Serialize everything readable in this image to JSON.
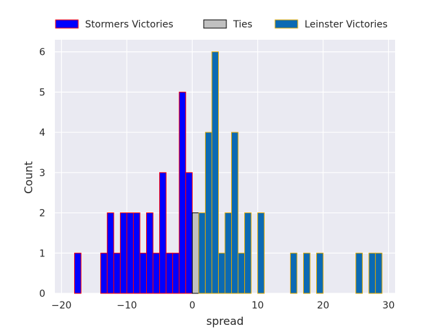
{
  "chart_data": {
    "type": "bar",
    "title": "",
    "xlabel": "spread",
    "ylabel": "Count",
    "xlim": [
      -21,
      31
    ],
    "ylim": [
      0,
      6.3
    ],
    "xticks": [
      -20,
      -10,
      0,
      10,
      20,
      30
    ],
    "xtick_labels": [
      "−20",
      "−10",
      "0",
      "10",
      "20",
      "30"
    ],
    "yticks": [
      0,
      1,
      2,
      3,
      4,
      5,
      6
    ],
    "ytick_labels": [
      "0",
      "1",
      "2",
      "3",
      "4",
      "5",
      "6"
    ],
    "grid": true,
    "legend_position": "top-center, outside plot",
    "bin_width": 1,
    "series": [
      {
        "name": "Stormers Victories",
        "fill": "#0000ff",
        "edge": "#ff0000",
        "bins": [
          {
            "x": -18,
            "count": 1
          },
          {
            "x": -14,
            "count": 1
          },
          {
            "x": -13,
            "count": 2
          },
          {
            "x": -12,
            "count": 1
          },
          {
            "x": -11,
            "count": 2
          },
          {
            "x": -10,
            "count": 2
          },
          {
            "x": -9,
            "count": 2
          },
          {
            "x": -8,
            "count": 1
          },
          {
            "x": -7,
            "count": 2
          },
          {
            "x": -6,
            "count": 1
          },
          {
            "x": -5,
            "count": 3
          },
          {
            "x": -4,
            "count": 1
          },
          {
            "x": -3,
            "count": 1
          },
          {
            "x": -2,
            "count": 5
          },
          {
            "x": -1,
            "count": 3
          }
        ]
      },
      {
        "name": "Ties",
        "fill": "#c0c0c0",
        "edge": "#000000",
        "bins": [
          {
            "x": 0,
            "count": 2
          }
        ]
      },
      {
        "name": "Leinster Victories",
        "fill": "#0b6ab3",
        "edge": "#e0a800",
        "bins": [
          {
            "x": 1,
            "count": 2
          },
          {
            "x": 2,
            "count": 4
          },
          {
            "x": 3,
            "count": 6
          },
          {
            "x": 4,
            "count": 1
          },
          {
            "x": 5,
            "count": 2
          },
          {
            "x": 6,
            "count": 4
          },
          {
            "x": 7,
            "count": 1
          },
          {
            "x": 8,
            "count": 2
          },
          {
            "x": 10,
            "count": 2
          },
          {
            "x": 15,
            "count": 1
          },
          {
            "x": 17,
            "count": 1
          },
          {
            "x": 19,
            "count": 1
          },
          {
            "x": 25,
            "count": 1
          },
          {
            "x": 27,
            "count": 1
          },
          {
            "x": 28,
            "count": 1
          }
        ]
      }
    ],
    "colors": {
      "plot_background": "#eaeaf2",
      "grid": "#ffffff",
      "text": "#262626"
    }
  }
}
